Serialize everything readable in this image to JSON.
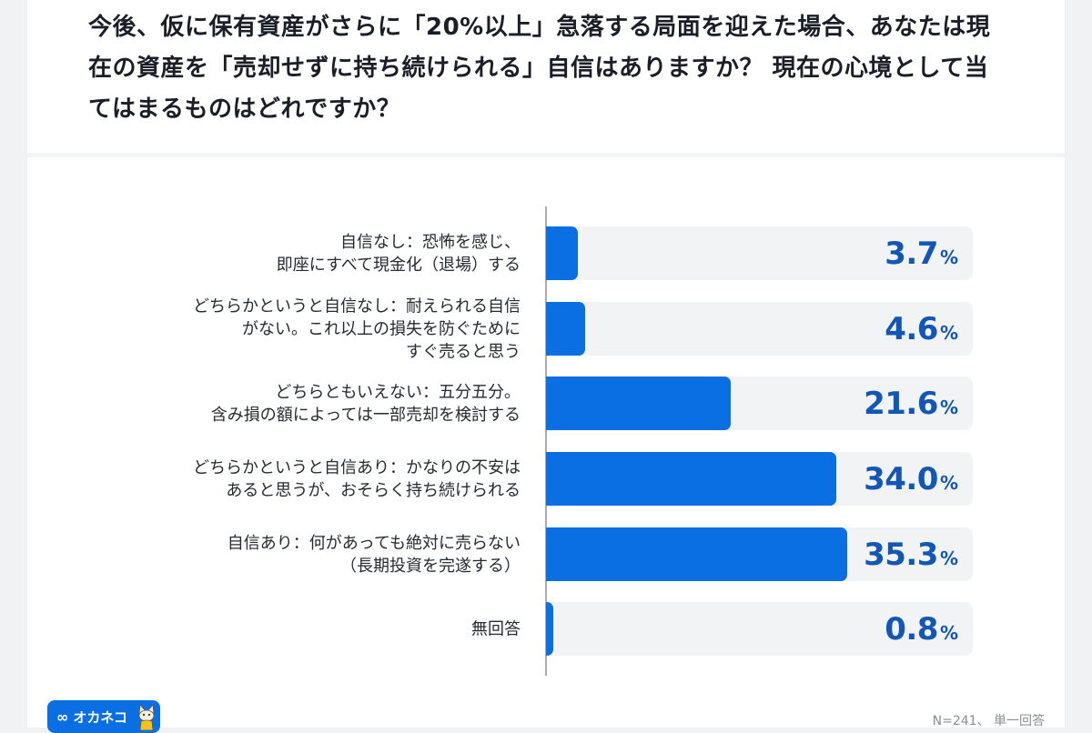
{
  "header": {
    "title": "今後、仮に保有資産がさらに「20%以上」急落する局面を迎えた場合、あなたは現在の資産を「売却せずに持ち続けられる」自信はありますか？ 現在の心境として当てはまるものはどれですか？"
  },
  "colors": {
    "bar": "#0a6fe3",
    "track": "#f2f3f5",
    "value_text": "#1257b5",
    "axis": "#a9adb3",
    "background": "#f1f2f4"
  },
  "chart_data": {
    "type": "bar",
    "orientation": "horizontal",
    "title": "今後、仮に保有資産がさらに「20%以上」急落する局面を迎えた場合、あなたは現在の資産を「売却せずに持ち続けられる」自信はありますか？ 現在の心境として当てはまるものはどれですか？",
    "xlabel": "",
    "ylabel": "",
    "xlim": [
      0,
      50
    ],
    "unit": "%",
    "grid": false,
    "categories": [
      "自信なし：恐怖を感じ、\n即座にすべて現金化（退場）する",
      "どちらかというと自信なし：耐えられる自信\nがない。これ以上の損失を防ぐために\nすぐ売ると思う",
      "どちらともいえない：五分五分。\n含み損の額によっては一部売却を検討する",
      "どちらかというと自信あり：かなりの不安は\nあると思うが、おそらく持ち続けられる",
      "自信あり：何があっても絶対に売らない\n（長期投資を完遂する）",
      "無回答"
    ],
    "values": [
      3.7,
      4.6,
      21.6,
      34.0,
      35.3,
      0.8
    ],
    "value_labels": [
      "3.7",
      "4.6",
      "21.6",
      "34.0",
      "35.3",
      "0.8"
    ],
    "note": "N=241、単一回答"
  },
  "footer": {
    "logo_symbol": "∞",
    "logo_text": "オカネコ",
    "note": "N=241、 単一回答"
  }
}
